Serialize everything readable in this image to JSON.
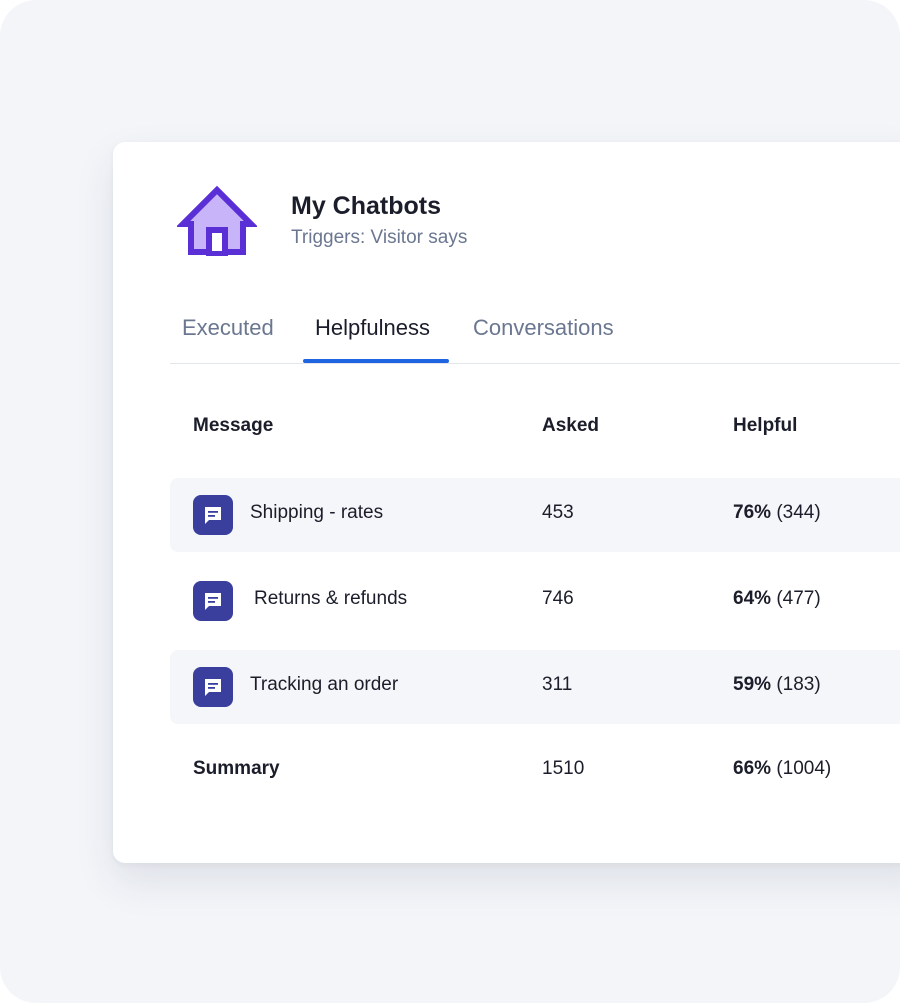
{
  "chatbot": {
    "title": "My Chatbots",
    "subtitle": "Triggers: Visitor says",
    "icon": "house-icon"
  },
  "tabs": [
    {
      "label": "Executed",
      "active": false
    },
    {
      "label": "Helpfulness",
      "active": true
    },
    {
      "label": "Conversations",
      "active": false
    }
  ],
  "table": {
    "headers": {
      "message": "Message",
      "asked": "Asked",
      "helpful": "Helpful"
    },
    "rows": [
      {
        "message": "Shipping - rates",
        "asked": "453",
        "helpful_pct": "76%",
        "helpful_count": "(344)",
        "icon": "message-icon"
      },
      {
        "message": "Returns & refunds",
        "asked": "746",
        "helpful_pct": "64%",
        "helpful_count": "(477)",
        "icon": "message-icon"
      },
      {
        "message": "Tracking an order",
        "asked": "311",
        "helpful_pct": "59%",
        "helpful_count": "(183)",
        "icon": "message-icon"
      }
    ],
    "summary": {
      "label": "Summary",
      "asked": "1510",
      "helpful_pct": "66%",
      "helpful_count": "(1004)"
    }
  },
  "colors": {
    "accent": "#1f64e0",
    "icon_purple": "#5a2fd6",
    "icon_fill": "#c8b4f8",
    "message_icon_bg": "#3a3f9e"
  }
}
